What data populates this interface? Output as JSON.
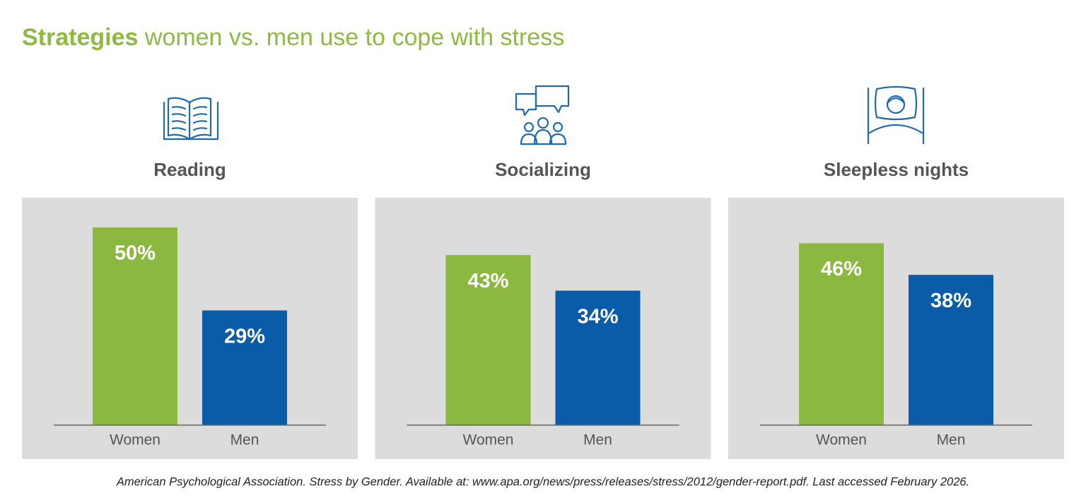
{
  "title_bold": "Strategies",
  "title_rest": "women vs. men use to cope with stress",
  "source": "American Psychological Association. Stress by Gender. Available at: www.apa.org/news/press/releases/stress/2012/gender-report.pdf. Last accessed February 2026.",
  "chart_data": [
    {
      "type": "bar",
      "title": "Reading",
      "categories": [
        "Women",
        "Men"
      ],
      "values": [
        50,
        29
      ],
      "value_labels": [
        "50%",
        "29%"
      ],
      "colors": [
        "#8ab840",
        "#0a5ca8"
      ]
    },
    {
      "type": "bar",
      "title": "Socializing",
      "categories": [
        "Women",
        "Men"
      ],
      "values": [
        43,
        34
      ],
      "value_labels": [
        "43%",
        "34%"
      ],
      "colors": [
        "#8ab840",
        "#0a5ca8"
      ]
    },
    {
      "type": "bar",
      "title": "Sleepless nights",
      "categories": [
        "Women",
        "Men"
      ],
      "values": [
        46,
        38
      ],
      "value_labels": [
        "46%",
        "38%"
      ],
      "colors": [
        "#8ab840",
        "#0a5ca8"
      ]
    }
  ]
}
